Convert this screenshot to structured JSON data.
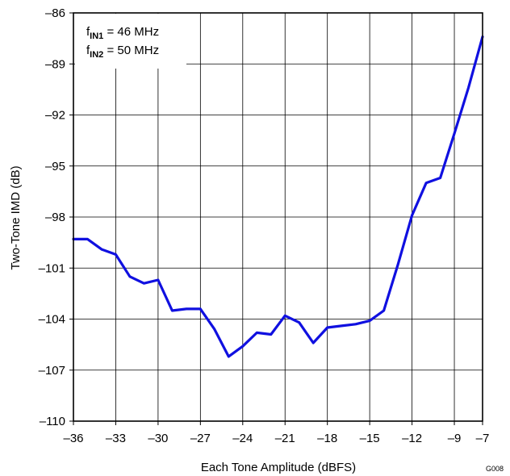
{
  "chart_data": {
    "type": "line",
    "title": "",
    "xlabel": "Each Tone Amplitude (dBFS)",
    "ylabel": "Two-Tone IMD (dB)",
    "xlim": [
      -36,
      -7
    ],
    "ylim": [
      -110,
      -86
    ],
    "xticks": [
      -36,
      -33,
      -30,
      -27,
      -24,
      -21,
      -18,
      -15,
      -12,
      -9,
      -7
    ],
    "yticks": [
      -86,
      -89,
      -92,
      -95,
      -98,
      -101,
      -104,
      -107,
      -110
    ],
    "xtick_labels": [
      "–36",
      "–33",
      "–30",
      "–27",
      "–24",
      "–21",
      "–18",
      "–15",
      "–12",
      "–9",
      "–7"
    ],
    "ytick_labels": [
      "–86",
      "–89",
      "–92",
      "–95",
      "–98",
      "–101",
      "–104",
      "–107",
      "–110"
    ],
    "grid": true,
    "series": [
      {
        "color": "#1010e0",
        "x": [
          -36,
          -35,
          -34,
          -33,
          -32,
          -31,
          -30,
          -29,
          -28,
          -27,
          -26,
          -25,
          -24,
          -23,
          -22,
          -21,
          -20,
          -19,
          -18,
          -17,
          -16,
          -15,
          -14,
          -13,
          -12,
          -11,
          -10,
          -9,
          -8,
          -7
        ],
        "y": [
          -99.3,
          -99.3,
          -99.9,
          -100.2,
          -101.5,
          -101.9,
          -101.7,
          -103.5,
          -103.4,
          -103.4,
          -104.6,
          -106.2,
          -105.6,
          -104.8,
          -104.9,
          -103.8,
          -104.2,
          -105.4,
          -104.5,
          -104.4,
          -104.3,
          -104.1,
          -103.5,
          -100.8,
          -97.9,
          -96.0,
          -95.7,
          -93.1,
          -90.4,
          -87.4
        ]
      }
    ],
    "legend": {
      "position": "top-left",
      "entries": [
        {
          "prefix": "f",
          "sub": "IN1",
          "suffix": " = 46 MHz"
        },
        {
          "prefix": "f",
          "sub": "IN2",
          "suffix": " = 50 MHz"
        }
      ]
    },
    "footnote": "G008"
  }
}
